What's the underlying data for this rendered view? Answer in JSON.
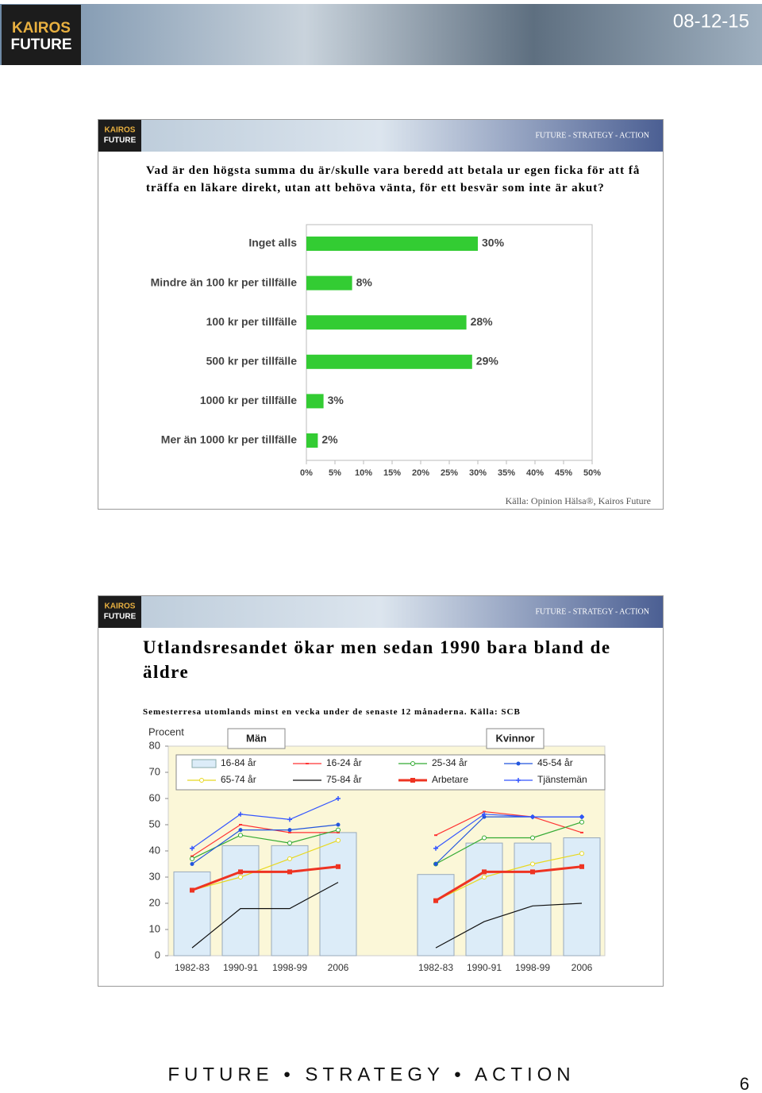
{
  "header": {
    "logo_top": "KAIROS",
    "logo_bottom": "FUTURE",
    "date": "08-12-15"
  },
  "slides": [
    {
      "logo_top": "KAIROS",
      "logo_bottom": "FUTURE",
      "tagline": "FUTURE - STRATEGY - ACTION"
    },
    {
      "logo_top": "KAIROS",
      "logo_bottom": "FUTURE",
      "tagline": "FUTURE - STRATEGY - ACTION"
    }
  ],
  "chart_data": [
    {
      "type": "hbar",
      "title": "Vad är den högsta summa du är/skulle vara beredd att betala ur egen ficka för att få träffa en läkare direkt, utan att behöva vänta, för ett besvär som inte är akut?",
      "source": "Källa: Opinion Hälsa®, Kairos Future",
      "categories": [
        "Inget alls",
        "Mindre än 100 kr per tillfälle",
        "100 kr per tillfälle",
        "500 kr per tillfälle",
        "1000 kr per tillfälle",
        "Mer än 1000 kr per tillfälle"
      ],
      "values": [
        30,
        8,
        28,
        29,
        3,
        2
      ],
      "value_labels": [
        "30%",
        "8%",
        "28%",
        "29%",
        "3%",
        "2%"
      ],
      "color": "#33cc33",
      "xlim": [
        0,
        50
      ],
      "xticks": [
        {
          "value": 0,
          "label": "0%"
        },
        {
          "value": 5,
          "label": "5%"
        },
        {
          "value": 10,
          "label": "10%"
        },
        {
          "value": 15,
          "label": "15%"
        },
        {
          "value": 20,
          "label": "20%"
        },
        {
          "value": 25,
          "label": "25%"
        },
        {
          "value": 30,
          "label": "30%"
        },
        {
          "value": 35,
          "label": "35%"
        },
        {
          "value": 40,
          "label": "40%"
        },
        {
          "value": 45,
          "label": "45%"
        },
        {
          "value": 50,
          "label": "50%"
        }
      ]
    },
    {
      "type": "panel-line",
      "title": "Utlandsresandet ökar men sedan 1990 bara bland de äldre",
      "subtitle": "Semesterresa utomlands minst en vecka under de senaste 12 månaderna. Källa: SCB",
      "ylabel": "Procent",
      "panels": [
        "Män",
        "Kvinnor"
      ],
      "categories": [
        "1982-83",
        "1990-91",
        "1998-99",
        "2006"
      ],
      "ylim": [
        0,
        80
      ],
      "yticks": [
        0,
        10,
        20,
        30,
        40,
        50,
        60,
        70,
        80
      ],
      "series": [
        {
          "name": "16-84 år",
          "type": "bar",
          "color": "#dcecf8",
          "values": [
            [
              32,
              42,
              42,
              47
            ],
            [
              31,
              43,
              43,
              45
            ]
          ]
        },
        {
          "name": "16-24 år",
          "type": "line",
          "marker": "dash",
          "color": "#ff3333",
          "values": [
            [
              38,
              50,
              47,
              47
            ],
            [
              46,
              55,
              53,
              47
            ]
          ]
        },
        {
          "name": "25-34 år",
          "type": "line",
          "marker": "circle",
          "color": "#33aa33",
          "values": [
            [
              37,
              46,
              43,
              48
            ],
            [
              35,
              45,
              45,
              51
            ]
          ]
        },
        {
          "name": "45-54 år",
          "type": "line",
          "marker": "dot",
          "color": "#2255dd",
          "values": [
            [
              35,
              48,
              48,
              50
            ],
            [
              35,
              53,
              53,
              53
            ]
          ]
        },
        {
          "name": "65-74 år",
          "type": "line",
          "marker": "circle",
          "color": "#e8d820",
          "values": [
            [
              25,
              30,
              37,
              44
            ],
            [
              21,
              30,
              35,
              39
            ]
          ]
        },
        {
          "name": "75-84 år",
          "type": "line",
          "marker": "none",
          "color": "#111111",
          "values": [
            [
              3,
              18,
              18,
              28
            ],
            [
              3,
              13,
              19,
              20
            ]
          ]
        },
        {
          "name": "Arbetare",
          "type": "line",
          "marker": "square",
          "color": "#ee3322",
          "width": 3,
          "values": [
            [
              25,
              32,
              32,
              34
            ],
            [
              21,
              32,
              32,
              34
            ]
          ]
        },
        {
          "name": "Tjänstemän",
          "type": "line",
          "marker": "plus",
          "color": "#3355ff",
          "values": [
            [
              41,
              54,
              52,
              60
            ],
            [
              41,
              54,
              53,
              53
            ]
          ]
        }
      ]
    }
  ],
  "footer": {
    "tagline": "FUTURE • STRATEGY • ACTION",
    "page": "6"
  }
}
